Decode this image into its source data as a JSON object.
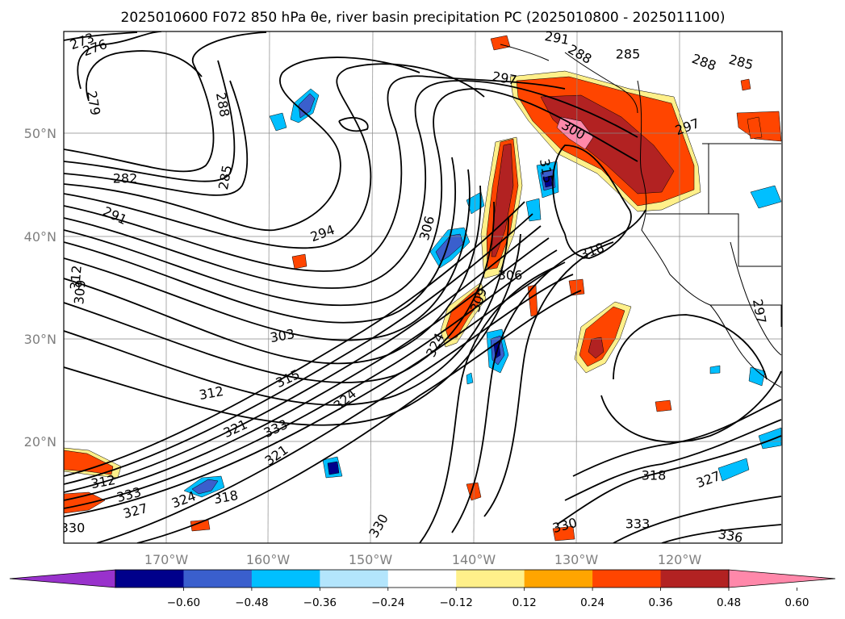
{
  "chart_data": {
    "type": "contour-map",
    "title": "2025010600 F072 850 hPa θe, river basin precipitation PC (2025010800 - 2025011100)",
    "projection": "Lambert conformal, North Pacific",
    "x_ticks": [
      "170°W",
      "160°W",
      "150°W",
      "140°W",
      "130°W",
      "120°W"
    ],
    "y_ticks": [
      "50°N",
      "40°N",
      "30°N",
      "20°N"
    ],
    "grid": true,
    "fill_variable": "river basin precipitation PC",
    "contour_variable": "850 hPa θe (K)",
    "contour_labels": [
      "273",
      "276",
      "279",
      "282",
      "285",
      "288",
      "291",
      "294",
      "297",
      "300",
      "303",
      "306",
      "309",
      "312",
      "315",
      "318",
      "321",
      "324",
      "327",
      "330",
      "333",
      "336"
    ],
    "colorbar": {
      "ticks": [
        "−0.60",
        "−0.48",
        "−0.36",
        "−0.24",
        "−0.12",
        "0.12",
        "0.24",
        "0.36",
        "0.48",
        "0.60"
      ],
      "under_color": "#9932cc",
      "over_color": "#ff88aa",
      "colors": [
        "#00008b",
        "#3a5fcd",
        "#00bfff",
        "#b3e5fc",
        "#ffffff",
        "#fff08a",
        "#ffa500",
        "#ff4500",
        "#b22222"
      ],
      "extend": "both"
    }
  }
}
